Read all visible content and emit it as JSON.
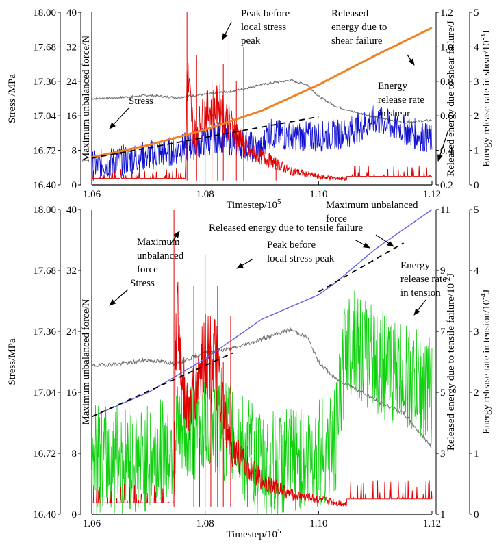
{
  "colors": {
    "stress": "#707070",
    "force": "#e00000",
    "energy_shear": "#f08020",
    "energy_tensile": "#6060e0",
    "rate_shear": "#1010d0",
    "rate_tension": "#10d010",
    "trend": "#000000"
  },
  "chart_data": [
    {
      "type": "line",
      "panel": "top",
      "x_range": [
        1.06,
        1.12
      ],
      "x_ticks": [
        "1.06",
        "1.08",
        "1.10",
        "1.12"
      ],
      "xlabel_base": "Timestep/10",
      "xlabel_exp": "5",
      "axes": {
        "stress": {
          "label": "Stress /MPa",
          "range": [
            16.4,
            18.0
          ],
          "ticks": [
            "18.00",
            "17.68",
            "17.36",
            "17.04",
            "16.72",
            "16.40"
          ]
        },
        "force": {
          "label": "Maximum unbalanced force/N",
          "range": [
            0,
            40
          ],
          "ticks": [
            "40",
            "32",
            "24",
            "16",
            "8",
            "0"
          ]
        },
        "energy": {
          "label": "Released energy due to shear failure/J",
          "range": [
            0.2,
            1.2
          ],
          "ticks": [
            "1.2",
            "1.0",
            "0.8",
            "0.6",
            "0.4",
            "0.2"
          ]
        },
        "rate": {
          "label_base": "Energy release rate in shear/10",
          "label_exp": "-3",
          "label_tail": "J",
          "range": [
            0,
            5
          ],
          "ticks": [
            "5",
            "4",
            "3",
            "2",
            "1",
            "0"
          ]
        }
      },
      "series": [
        {
          "key": "stress",
          "axis": "stress",
          "x": [
            1.06,
            1.065,
            1.07,
            1.075,
            1.08,
            1.085,
            1.09,
            1.095,
            1.098,
            1.1,
            1.103,
            1.106,
            1.11,
            1.115,
            1.12
          ],
          "y": [
            17.2,
            17.21,
            17.23,
            17.21,
            17.24,
            17.27,
            17.33,
            17.37,
            17.33,
            17.22,
            17.13,
            17.08,
            17.03,
            16.98,
            17.0
          ]
        },
        {
          "key": "force",
          "axis": "force",
          "x": [
            1.06,
            1.0765,
            1.0768,
            1.078,
            1.08,
            1.0825,
            1.085,
            1.0875,
            1.09,
            1.092,
            1.095,
            1.1,
            1.105,
            1.11,
            1.115,
            1.12
          ],
          "y": [
            1.5,
            1.5,
            40,
            18,
            26,
            28,
            20,
            12,
            10,
            8,
            5,
            3,
            2,
            2,
            2,
            2
          ]
        },
        {
          "key": "energy",
          "axis": "energy",
          "x": [
            1.06,
            1.07,
            1.08,
            1.09,
            1.1,
            1.11,
            1.12
          ],
          "y": [
            0.36,
            0.43,
            0.52,
            0.63,
            0.78,
            0.95,
            1.11
          ]
        },
        {
          "key": "rate",
          "axis": "rate",
          "x": [
            1.06,
            1.07,
            1.077,
            1.0825,
            1.09,
            1.091,
            1.095,
            1.1,
            1.105,
            1.11,
            1.115,
            1.12
          ],
          "y": [
            0.55,
            0.85,
            1.1,
            1.4,
            1.0,
            1.5,
            1.4,
            1.4,
            1.5,
            1.9,
            1.6,
            1.3
          ]
        },
        {
          "key": "trend",
          "axis": "energy",
          "x": [
            1.06,
            1.1
          ],
          "y": [
            0.355,
            0.595
          ]
        }
      ],
      "annotations": {
        "stress": "Stress",
        "peak": [
          "Peak before",
          "local stress",
          "peak"
        ],
        "released": [
          "Released",
          "energy due to",
          "shear failure"
        ],
        "rate": [
          "Energy",
          "release rate",
          "in shear"
        ],
        "force": [
          "Maximum unbalanced",
          "force"
        ]
      }
    },
    {
      "type": "line",
      "panel": "bottom",
      "x_range": [
        1.06,
        1.12
      ],
      "x_ticks": [
        "1.06",
        "1.08",
        "1.10",
        "1.12"
      ],
      "xlabel_base": "Timestep/10",
      "xlabel_exp": "5",
      "axes": {
        "stress": {
          "label": "Stress/MPa",
          "range": [
            16.4,
            18.0
          ],
          "ticks": [
            "18.00",
            "17.68",
            "17.36",
            "17.04",
            "16.72",
            "16.40"
          ]
        },
        "force": {
          "label": "Maximum unbalanced force/N",
          "range": [
            0,
            40
          ],
          "ticks": [
            "40",
            "32",
            "24",
            "16",
            "8",
            "0"
          ]
        },
        "energy": {
          "label_base": "Released energy due to tensile failure/10",
          "label_exp": "-2",
          "label_tail": "J",
          "range": [
            1,
            11
          ],
          "ticks": [
            "11",
            "9",
            "7",
            "5",
            "3",
            "1"
          ]
        },
        "rate": {
          "label_base": "Energy release rate in tension/10",
          "label_exp": "-4",
          "label_tail": "J",
          "range": [
            0,
            5
          ],
          "ticks": [
            "5",
            "4",
            "3",
            "2",
            "1",
            "0"
          ]
        }
      },
      "series": [
        {
          "key": "stress",
          "axis": "stress",
          "x": [
            1.06,
            1.065,
            1.07,
            1.075,
            1.08,
            1.085,
            1.09,
            1.095,
            1.098,
            1.1,
            1.103,
            1.106,
            1.11,
            1.115,
            1.12
          ],
          "y": [
            17.18,
            17.19,
            17.21,
            17.19,
            17.25,
            17.27,
            17.32,
            17.37,
            17.33,
            17.2,
            17.11,
            17.07,
            17.0,
            16.93,
            16.75
          ]
        },
        {
          "key": "force",
          "axis": "force",
          "x": [
            1.06,
            1.0745,
            1.0748,
            1.077,
            1.08,
            1.082,
            1.084,
            1.087,
            1.09,
            1.095,
            1.1,
            1.105,
            1.11,
            1.115,
            1.12
          ],
          "y": [
            1.5,
            1.5,
            40,
            20,
            33,
            30,
            15,
            10,
            7,
            4,
            3,
            2,
            2,
            2,
            2
          ]
        },
        {
          "key": "energy",
          "axis": "energy",
          "x": [
            1.06,
            1.07,
            1.08,
            1.09,
            1.1,
            1.103,
            1.11,
            1.12
          ],
          "y": [
            4.2,
            5.0,
            6.1,
            7.4,
            8.2,
            8.6,
            9.7,
            11.0
          ]
        },
        {
          "key": "rate",
          "axis": "rate",
          "x": [
            1.06,
            1.07,
            1.075,
            1.08,
            1.085,
            1.09,
            1.1,
            1.103,
            1.105,
            1.11,
            1.115,
            1.12
          ],
          "y": [
            0.9,
            0.9,
            1.2,
            1.6,
            1.3,
            0.8,
            1.0,
            1.2,
            2.9,
            2.5,
            2.3,
            2.0
          ]
        },
        {
          "key": "trend",
          "axis": "energy",
          "x": [
            1.06,
            1.085
          ],
          "y": [
            4.2,
            6.3
          ]
        },
        {
          "key": "trend",
          "axis": "energy",
          "x": [
            1.1,
            1.115
          ],
          "y": [
            8.3,
            9.9
          ]
        }
      ],
      "annotations": {
        "force": [
          "Maximum",
          "unbalanced",
          "force"
        ],
        "peak": [
          "Peak before",
          "local stress peak"
        ],
        "released": "Released energy due to tensile failure",
        "stress": "Stress",
        "rate": [
          "Energy",
          "release rate",
          "in tension"
        ]
      }
    }
  ]
}
